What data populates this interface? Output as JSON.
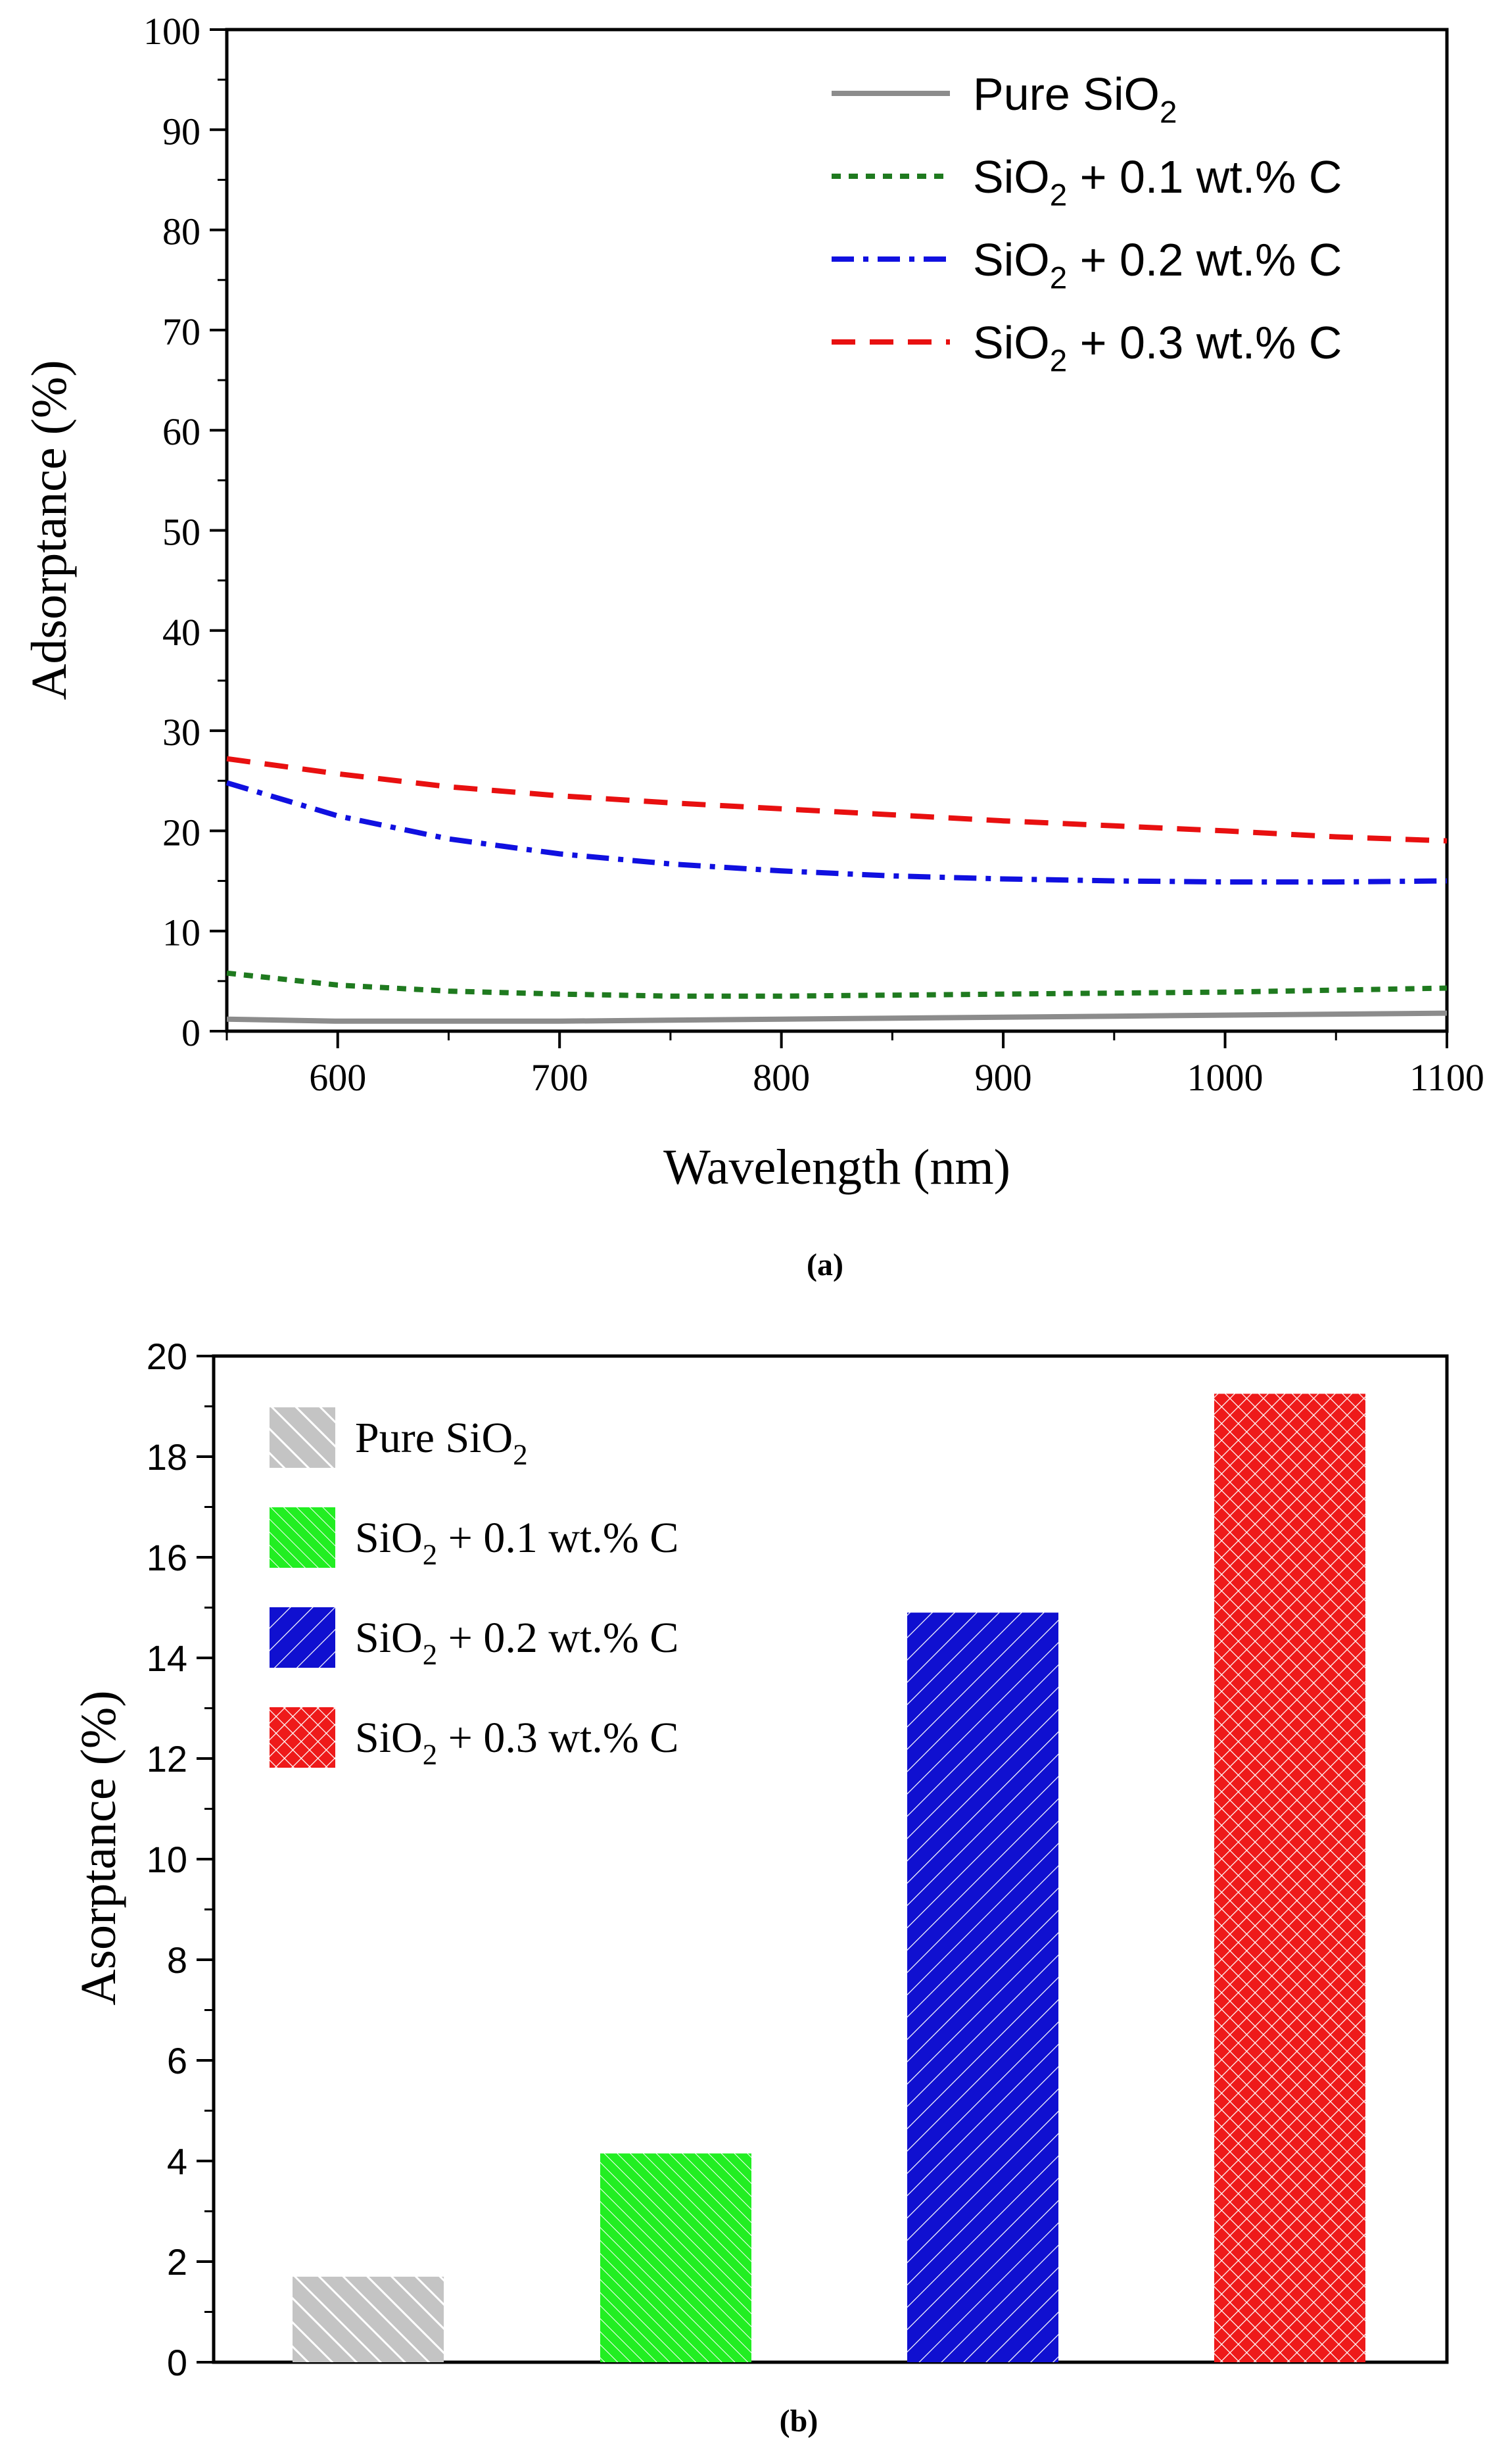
{
  "chart_data": [
    {
      "panel_label": "(a)",
      "type": "line",
      "title": "",
      "xlabel": "Wavelength (nm)",
      "ylabel": "Adsorptance (%)",
      "xlim": [
        550,
        1100
      ],
      "ylim": [
        0,
        100
      ],
      "xticks": [
        600,
        700,
        800,
        900,
        1000,
        1100
      ],
      "yticks": [
        0,
        10,
        20,
        30,
        40,
        50,
        60,
        70,
        80,
        90,
        100
      ],
      "grid": false,
      "legend_position": "top-right",
      "series": [
        {
          "name": "Pure SiO2",
          "legend": {
            "base": "Pure SiO",
            "sub": "2",
            "tail": ""
          },
          "color": "#8c8c8c",
          "style": "solid",
          "x": [
            550,
            600,
            650,
            700,
            750,
            800,
            850,
            900,
            950,
            1000,
            1050,
            1100
          ],
          "y": [
            1.2,
            1.0,
            1.0,
            1.0,
            1.1,
            1.2,
            1.3,
            1.4,
            1.5,
            1.6,
            1.7,
            1.8
          ]
        },
        {
          "name": "SiO2 + 0.1 wt.% C",
          "legend": {
            "base": "SiO",
            "sub": "2",
            "tail": " + 0.1 wt.% C"
          },
          "color": "#1f7a1f",
          "style": "dot",
          "x": [
            550,
            600,
            650,
            700,
            750,
            800,
            850,
            900,
            950,
            1000,
            1050,
            1100
          ],
          "y": [
            5.8,
            4.6,
            4.0,
            3.7,
            3.5,
            3.5,
            3.6,
            3.7,
            3.8,
            3.9,
            4.1,
            4.3
          ]
        },
        {
          "name": "SiO2 + 0.2 wt.% C",
          "legend": {
            "base": "SiO",
            "sub": "2",
            "tail": " + 0.2 wt.% C"
          },
          "color": "#1010e0",
          "style": "dashdot",
          "x": [
            550,
            600,
            650,
            700,
            750,
            800,
            850,
            900,
            950,
            1000,
            1050,
            1100
          ],
          "y": [
            24.8,
            21.5,
            19.2,
            17.7,
            16.7,
            16.0,
            15.5,
            15.2,
            15.0,
            14.9,
            14.9,
            15.0
          ]
        },
        {
          "name": "SiO2 + 0.3 wt.% C",
          "legend": {
            "base": "SiO",
            "sub": "2",
            "tail": " + 0.3 wt.% C"
          },
          "color": "#e81010",
          "style": "dash",
          "x": [
            550,
            600,
            650,
            700,
            750,
            800,
            850,
            900,
            950,
            1000,
            1050,
            1100
          ],
          "y": [
            27.2,
            25.7,
            24.4,
            23.5,
            22.8,
            22.2,
            21.6,
            21.0,
            20.5,
            20.0,
            19.4,
            19.0
          ]
        }
      ]
    },
    {
      "panel_label": "(b)",
      "type": "bar",
      "title": "",
      "xlabel": "",
      "ylabel": "Asorptance (%)",
      "ylim": [
        0,
        20
      ],
      "yticks": [
        0,
        2,
        4,
        6,
        8,
        10,
        12,
        14,
        16,
        18,
        20
      ],
      "grid": false,
      "legend_position": "top-left",
      "categories": [
        "Pure SiO2",
        "SiO2 + 0.1 wt.% C",
        "SiO2 + 0.2 wt.% C",
        "SiO2 + 0.3 wt.% C"
      ],
      "values": [
        1.7,
        4.15,
        14.9,
        19.25
      ],
      "colors": [
        "#c0c0c0",
        "#22ee22",
        "#1010d0",
        "#ee1a1a"
      ],
      "patterns": [
        "diag-right",
        "diag-right-dense",
        "diag-left",
        "crosshatch"
      ],
      "legend": [
        {
          "base": "Pure SiO",
          "sub": "2",
          "tail": ""
        },
        {
          "base": "SiO",
          "sub": "2",
          "tail": " + 0.1 wt.% C"
        },
        {
          "base": "SiO",
          "sub": "2",
          "tail": " + 0.2 wt.% C"
        },
        {
          "base": "SiO",
          "sub": "2",
          "tail": " + 0.3 wt.% C"
        }
      ]
    }
  ]
}
